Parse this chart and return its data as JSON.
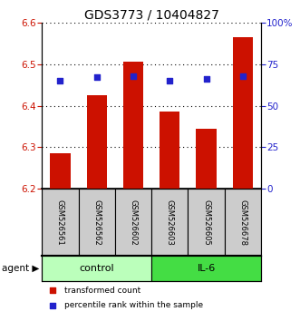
{
  "title": "GDS3773 / 10404827",
  "samples": [
    "GSM526561",
    "GSM526562",
    "GSM526602",
    "GSM526603",
    "GSM526605",
    "GSM526678"
  ],
  "bar_values": [
    6.285,
    6.425,
    6.505,
    6.385,
    6.345,
    6.565
  ],
  "bar_bottom": 6.2,
  "percentile_values": [
    65,
    67,
    68,
    65,
    66,
    68
  ],
  "ylim_left": [
    6.2,
    6.6
  ],
  "ylim_right": [
    0,
    100
  ],
  "yticks_left": [
    6.2,
    6.3,
    6.4,
    6.5,
    6.6
  ],
  "yticks_right": [
    0,
    25,
    50,
    75,
    100
  ],
  "ytick_labels_right": [
    "0",
    "25",
    "50",
    "75",
    "100%"
  ],
  "bar_color": "#cc1100",
  "dot_color": "#2222cc",
  "control_color": "#bbffbb",
  "il6_color": "#44dd44",
  "sample_bg_color": "#cccccc",
  "bar_width": 0.55,
  "title_fontsize": 10,
  "tick_fontsize": 7.5,
  "sample_fontsize": 6,
  "group_fontsize": 8,
  "legend_fontsize": 6.5,
  "agent_fontsize": 7.5
}
